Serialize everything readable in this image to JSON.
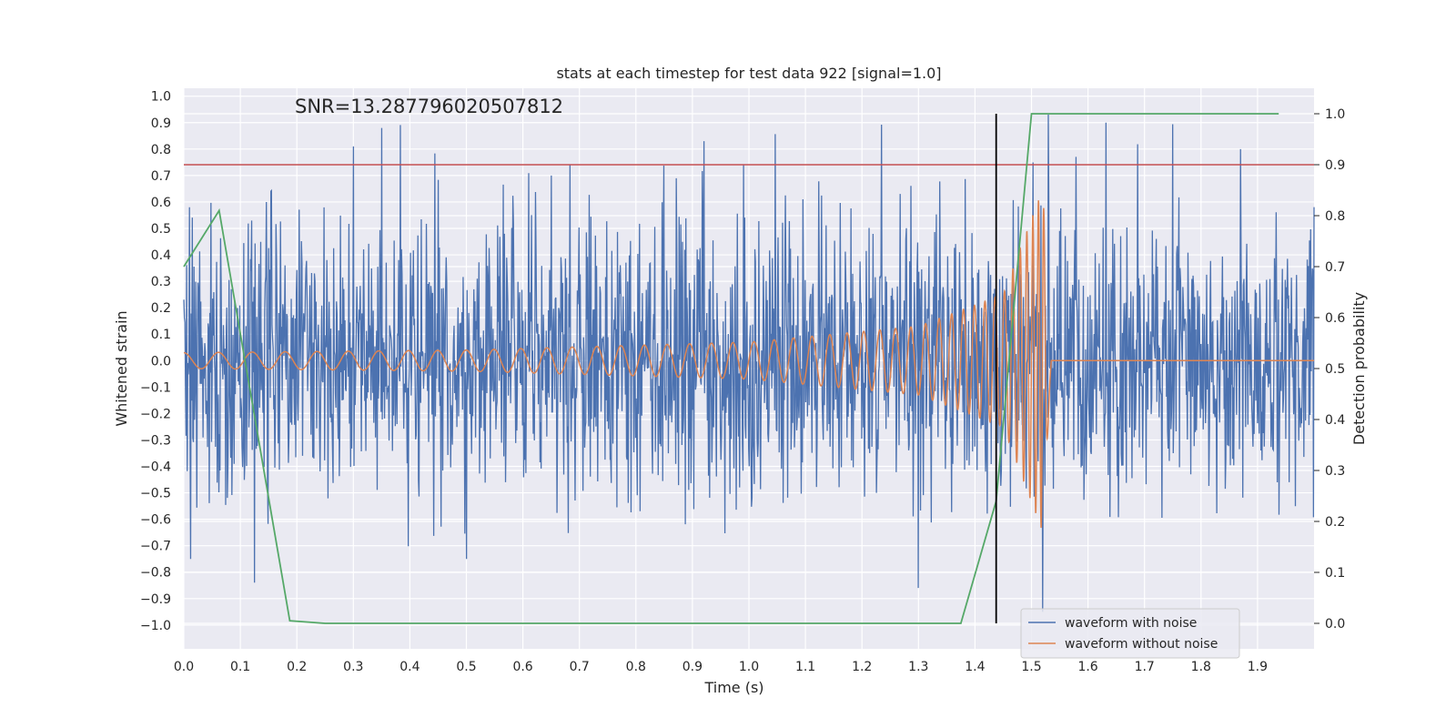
{
  "chart_data": {
    "type": "line",
    "title": "stats at each timestep for test data 922 [signal=1.0]",
    "xlabel": "Time (s)",
    "ylabel": "Whitened strain",
    "y2label": "Detection probability",
    "annotation": "SNR=13.287796020507812",
    "xlim": [
      0.0,
      2.0
    ],
    "ylim": [
      -1.09,
      1.03
    ],
    "y2lim": [
      -0.05,
      1.05
    ],
    "x_ticks": [
      0.0,
      0.1,
      0.2,
      0.3,
      0.4,
      0.5,
      0.6,
      0.7,
      0.8,
      0.9,
      1.0,
      1.1,
      1.2,
      1.3,
      1.4,
      1.5,
      1.6,
      1.7,
      1.8,
      1.9
    ],
    "x_tick_labels": [
      "0.0",
      "0.1",
      "0.2",
      "0.3",
      "0.4",
      "0.5",
      "0.6",
      "0.7",
      "0.8",
      "0.9",
      "1.0",
      "1.1",
      "1.2",
      "1.3",
      "1.4",
      "1.5",
      "1.6",
      "1.7",
      "1.8",
      "1.9"
    ],
    "y_ticks": [
      1.0,
      0.9,
      0.8,
      0.7,
      0.6,
      0.5,
      0.4,
      0.3,
      0.2,
      0.1,
      0.0,
      -0.1,
      -0.2,
      -0.3,
      -0.4,
      -0.5,
      -0.6,
      -0.7,
      -0.8,
      -0.9,
      -1.0
    ],
    "y_tick_labels": [
      "1.0",
      "0.9",
      "0.8",
      "0.7",
      "0.6",
      "0.5",
      "0.4",
      "0.3",
      "0.2",
      "0.1",
      "0.0",
      "−0.1",
      "−0.2",
      "−0.3",
      "−0.4",
      "−0.5",
      "−0.6",
      "−0.7",
      "−0.8",
      "−0.9",
      "−1.0"
    ],
    "y2_ticks": [
      1.0,
      0.9,
      0.8,
      0.7,
      0.6,
      0.5,
      0.4,
      0.3,
      0.2,
      0.1,
      0.0
    ],
    "y2_tick_labels": [
      "1.0",
      "0.9",
      "0.8",
      "0.7",
      "0.6",
      "0.5",
      "0.4",
      "0.3",
      "0.2",
      "0.1",
      "0.0"
    ],
    "grid": true,
    "legend_position": "lower-right",
    "background_color": "#eaeaf2",
    "series": [
      {
        "name": "waveform with noise",
        "color": "#4c72b0",
        "axis": "left",
        "x_start": 0.0,
        "x_end": 2.0,
        "sample_count": 2000,
        "noise_std": 0.27,
        "peaks": [
          {
            "x": 0.01,
            "y": 0.58
          },
          {
            "x": 0.012,
            "y": -0.75
          },
          {
            "x": 0.3,
            "y": 0.81
          },
          {
            "x": 0.35,
            "y": 0.88
          },
          {
            "x": 0.5,
            "y": -0.75
          },
          {
            "x": 0.65,
            "y": 0.7
          },
          {
            "x": 0.92,
            "y": 0.83
          },
          {
            "x": 0.99,
            "y": 0.74
          },
          {
            "x": 1.3,
            "y": -0.86
          },
          {
            "x": 1.52,
            "y": 0.72
          },
          {
            "x": 1.53,
            "y": 0.93
          },
          {
            "x": 1.52,
            "y": -0.95
          },
          {
            "x": 1.87,
            "y": 0.8
          }
        ]
      },
      {
        "name": "waveform without noise",
        "color": "#dd8452",
        "axis": "left",
        "description_points": [
          {
            "x": 0.0,
            "amp": 0.03,
            "freq": 16
          },
          {
            "x": 0.5,
            "amp": 0.04,
            "freq": 20
          },
          {
            "x": 1.0,
            "amp": 0.07,
            "freq": 27
          },
          {
            "x": 1.3,
            "amp": 0.13,
            "freq": 38
          },
          {
            "x": 1.45,
            "amp": 0.25,
            "freq": 60
          },
          {
            "x": 1.52,
            "amp": 0.65,
            "freq": 110
          },
          {
            "x": 1.535,
            "amp": 0.0,
            "freq": 0
          }
        ],
        "merger_time": 1.535
      },
      {
        "name": "",
        "color": "#55a868",
        "axis": "right",
        "x": [
          0.0,
          0.0625,
          0.1875,
          0.25,
          1.375,
          1.4375,
          1.5,
          1.5625,
          1.9375
        ],
        "y": [
          0.7,
          0.81,
          0.005,
          0.0,
          0.0,
          0.24,
          1.0,
          1.0,
          1.0
        ]
      }
    ],
    "threshold_line": {
      "axis": "right",
      "y": 0.9,
      "color": "#c44e52"
    },
    "vertical_marker": {
      "x": 1.4375,
      "y_from": 0.0,
      "y_to": 1.0,
      "color": "#000000"
    }
  }
}
